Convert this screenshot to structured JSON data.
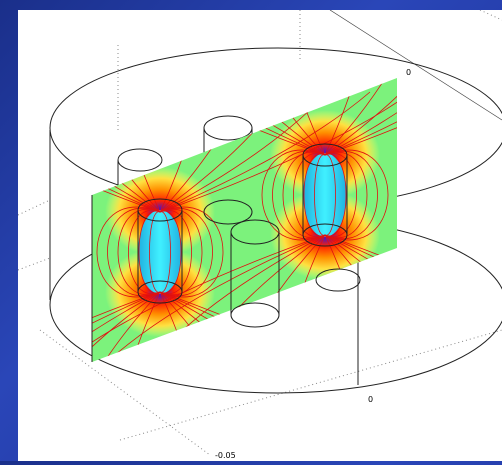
{
  "labels": {
    "top_axis_tick": "0",
    "bottom_axis_tick": "0",
    "corner_axis_tick": "-0.05"
  }
}
